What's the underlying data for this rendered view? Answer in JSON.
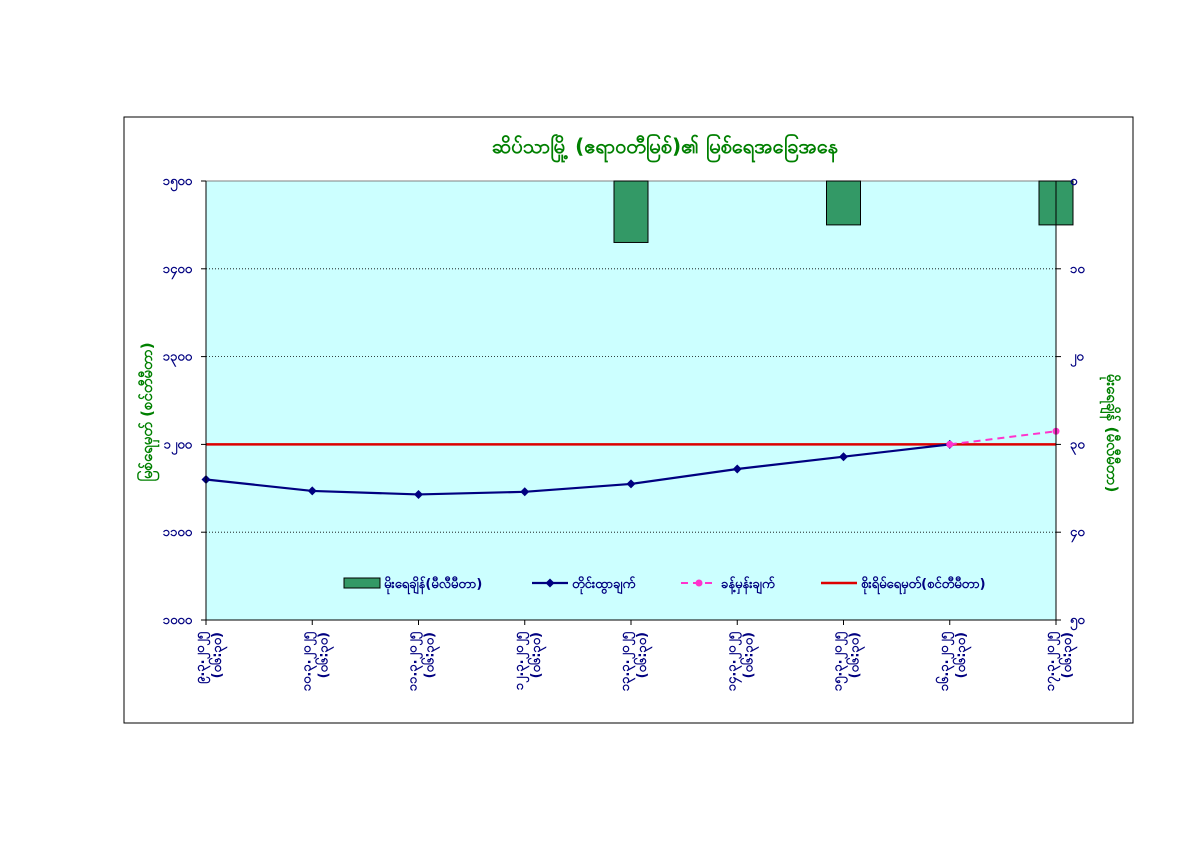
{
  "chart_data": {
    "type": "line",
    "title": "ဆိပ်သာမြို့ (ဧရာဝတီမြစ်)၏ မြစ်ရေအခြေအနေ",
    "ylabel_left": "မြစ်ရေမှတ် (စင်တီမီတာ)",
    "ylabel_right": "မိုးရေချိန် (မီလီမီတာ)",
    "ylim_left": [
      1000,
      1500
    ],
    "ylim_right": [
      0,
      50
    ],
    "left_ticks": [
      "၁၀၀၀",
      "၁၁၀၀",
      "၁၂၀၀",
      "၁၃၀၀",
      "၁၄၀၀",
      "၁၅၀၀"
    ],
    "left_tick_values": [
      1000,
      1100,
      1200,
      1300,
      1400,
      1500
    ],
    "right_ticks": [
      "၀",
      "၁၀",
      "၂၀",
      "၃၀",
      "၄၀",
      "၅၀"
    ],
    "right_tick_values": [
      0,
      10,
      20,
      30,
      40,
      50
    ],
    "categories": [
      [
        "၉.၃.၂၀၂၅",
        "(၀၆:၃၀)"
      ],
      [
        "၁၀.၃.၂၀၂၅",
        "(၀၆:၃၀)"
      ],
      [
        "၁၁.၃.၂၀၂၅",
        "(၀၆:၃၀)"
      ],
      [
        "၁၂.၃.၂၀၂၅",
        "(၀၆:၃၀)"
      ],
      [
        "၁၃.၃.၂၀၂၅",
        "(၀၆:၃၀)"
      ],
      [
        "၁၄.၃.၂၀၂၅",
        "(၀၆:၃၀)"
      ],
      [
        "၁၅.၃.၂၀၂၅",
        "(၀၆:၃၀)"
      ],
      [
        "၁၆.၃.၂၀၂၅",
        "(၀၆:၃၀)"
      ],
      [
        "၁၇.၃.၂၀၂၅",
        "(၀၆:၃၀)"
      ]
    ],
    "series": [
      {
        "name": "မိုးရေချိန်(မီလီမီတာ)",
        "type": "bar",
        "axis": "right",
        "values": [
          null,
          null,
          null,
          null,
          7,
          null,
          5,
          null,
          5
        ]
      },
      {
        "name": "တိုင်းထွာချက်",
        "type": "line",
        "axis": "left",
        "marker": "diamond",
        "values": [
          1160,
          1147,
          1143,
          1146,
          1155,
          1172,
          1186,
          1200,
          null
        ]
      },
      {
        "name": "ခန့်မှန်းချက်",
        "type": "line",
        "axis": "left",
        "dashed": true,
        "marker": "circle",
        "values": [
          null,
          null,
          null,
          null,
          null,
          null,
          null,
          1200,
          1215
        ]
      },
      {
        "name": "စိုးရိမ်ရေမှတ်(စင်တီမီတာ)",
        "type": "hline",
        "axis": "left",
        "value": 1200
      }
    ],
    "grid": true,
    "legend_position": "bottom-inside",
    "colors": {
      "plot_bg": "#ccffff",
      "bar": "#339966",
      "measured": "#000080",
      "forecast": "#ff33cc",
      "danger": "#dd0000",
      "title": "#008000",
      "ylabel": "#008000",
      "ticks": "#000080"
    }
  }
}
